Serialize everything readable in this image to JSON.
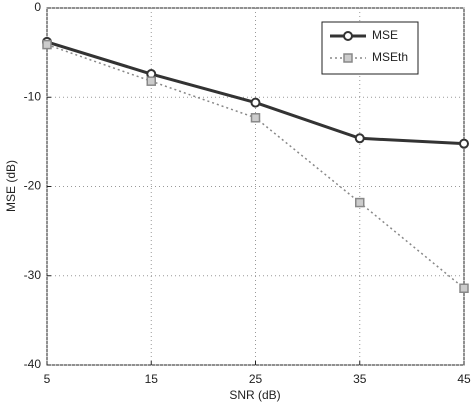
{
  "chart_data": {
    "type": "line",
    "x_label": "SNR (dB)",
    "y_label": "MSE (dB)",
    "x": [
      5,
      15,
      25,
      35,
      45
    ],
    "series": [
      {
        "name": "MSE",
        "color": "#333333",
        "line_style": "solid",
        "marker": "circle",
        "values": [
          -3.8,
          -7.4,
          -10.6,
          -14.6,
          -15.2
        ]
      },
      {
        "name": "MSEth",
        "color": "#888888",
        "line_style": "dotted",
        "marker": "square",
        "values": [
          -4.1,
          -8.2,
          -12.3,
          -21.8,
          -31.4
        ]
      }
    ],
    "xlim": [
      5,
      45
    ],
    "xticks": [
      5,
      15,
      25,
      35,
      45
    ],
    "ylim": [
      -40,
      0
    ],
    "yticks": [
      -40,
      -30,
      -20,
      -10,
      0
    ],
    "grid": true,
    "legend": "upper right"
  }
}
